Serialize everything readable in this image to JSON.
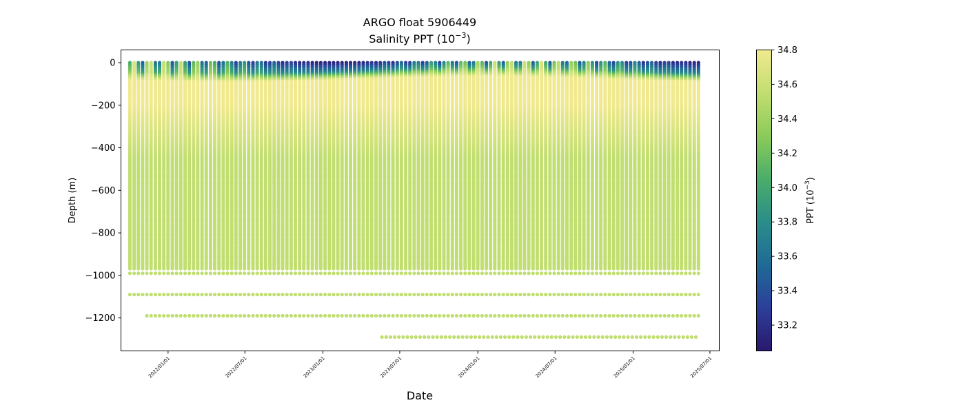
{
  "chart_data": {
    "type": "scatter",
    "title_line1": "ARGO float 5906449",
    "title_line2_prefix": "Salinity PPT (10",
    "title_line2_sup": "−3",
    "title_line2_suffix": ")",
    "xlabel": "Date",
    "ylabel": "Depth (m)",
    "x_range": [
      "2021-09-12",
      "2025-07-23"
    ],
    "ylim": [
      -1355,
      60
    ],
    "x_ticks": [
      "2022/01/01",
      "2022/07/01",
      "2023/01/01",
      "2023/07/01",
      "2024/01/01",
      "2024/07/01",
      "2025/01/01",
      "2025/07/01"
    ],
    "y_ticks": [
      0,
      -200,
      -400,
      -600,
      -800,
      -1000,
      -1200
    ],
    "y_tick_labels": [
      "0",
      "−200",
      "−400",
      "−600",
      "−800",
      "−1000",
      "−1200"
    ],
    "first_profile": "2021-10-03",
    "last_profile": "2025-06-07",
    "profile_interval_days": 10,
    "profile_depth_m": [
      0,
      -975
    ],
    "deep_levels": [
      {
        "depth": -990,
        "start": "2021-10-03"
      },
      {
        "depth": -1090,
        "start": "2021-10-03"
      },
      {
        "depth": -1190,
        "start": "2021-11-12"
      },
      {
        "depth": -1290,
        "start": "2023-05-20"
      }
    ],
    "surface_salinity_range": [
      33.1,
      34.7
    ],
    "subsurface_max_salinity": 34.8,
    "deep_salinity": 34.55,
    "colorbar": {
      "min": 33.05,
      "max": 34.8,
      "ticks": [
        33.2,
        33.4,
        33.6,
        33.8,
        34.0,
        34.2,
        34.4,
        34.6,
        34.8
      ],
      "tick_labels": [
        "33.2",
        "33.4",
        "33.6",
        "33.8",
        "34.0",
        "34.2",
        "34.4",
        "34.6",
        "34.8"
      ],
      "label_prefix": "PPT (10",
      "label_sup": "−3",
      "label_suffix": ")",
      "colormap": "viridis-yellow-green-blue",
      "colors": [
        "#2a186c",
        "#2c3f9a",
        "#1f6a96",
        "#2a8e8a",
        "#4aad6a",
        "#8ccb5a",
        "#c1de70",
        "#f0e98e"
      ]
    }
  }
}
